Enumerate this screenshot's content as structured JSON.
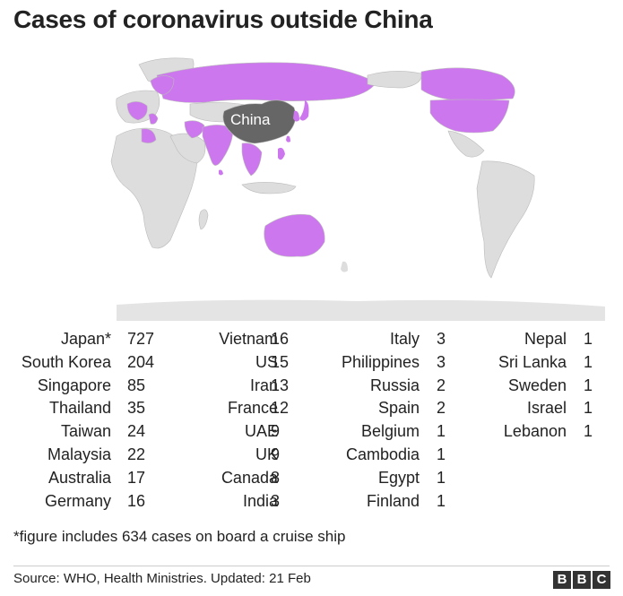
{
  "title": "Cases of coronavirus outside China",
  "map": {
    "highlight_label": "China",
    "colors": {
      "affected": "#cc77ee",
      "china": "#666666",
      "unaffected": "#dddddd",
      "border": "#bbbbbb"
    }
  },
  "cases": [
    [
      {
        "country": "Japan*",
        "count": "727"
      },
      {
        "country": "South Korea",
        "count": "204"
      },
      {
        "country": "Singapore",
        "count": "85"
      },
      {
        "country": "Thailand",
        "count": "35"
      },
      {
        "country": "Taiwan",
        "count": "24"
      },
      {
        "country": "Malaysia",
        "count": "22"
      },
      {
        "country": "Australia",
        "count": "17"
      },
      {
        "country": "Germany",
        "count": "16"
      }
    ],
    [
      {
        "country": "Vietnam",
        "count": "16"
      },
      {
        "country": "US",
        "count": "15"
      },
      {
        "country": "Iran",
        "count": "13"
      },
      {
        "country": "France",
        "count": "12"
      },
      {
        "country": "UAE",
        "count": "9"
      },
      {
        "country": "UK",
        "count": "9"
      },
      {
        "country": "Canada",
        "count": "8"
      },
      {
        "country": "India",
        "count": "3"
      }
    ],
    [
      {
        "country": "Italy",
        "count": "3"
      },
      {
        "country": "Philippines",
        "count": "3"
      },
      {
        "country": "Russia",
        "count": "2"
      },
      {
        "country": "Spain",
        "count": "2"
      },
      {
        "country": "Belgium",
        "count": "1"
      },
      {
        "country": "Cambodia",
        "count": "1"
      },
      {
        "country": "Egypt",
        "count": "1"
      },
      {
        "country": "Finland",
        "count": "1"
      }
    ],
    [
      {
        "country": "Nepal",
        "count": "1"
      },
      {
        "country": "Sri Lanka",
        "count": "1"
      },
      {
        "country": "Sweden",
        "count": "1"
      },
      {
        "country": "Israel",
        "count": "1"
      },
      {
        "country": "Lebanon",
        "count": "1"
      }
    ]
  ],
  "footnote": "*figure includes 634 cases on board a cruise ship",
  "source": "Source: WHO, Health Ministries. Updated: 21 Feb",
  "logo": [
    "B",
    "B",
    "C"
  ]
}
